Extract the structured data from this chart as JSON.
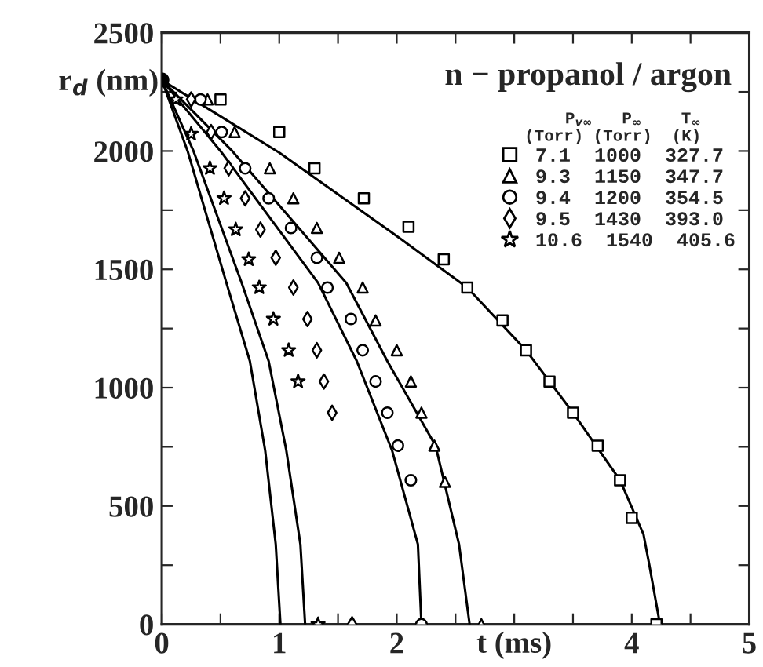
{
  "chart_data": {
    "type": "scatter",
    "title": "n − propanol / argon",
    "xlabel": "t (ms)",
    "ylabel": "r$_{d}$ (nm)",
    "legend_title": "P$_{v∞}$   P$_{∞}$    T$_{∞}$\n(Torr) (Torr)  (K)",
    "xlim": [
      0,
      5
    ],
    "xticks": [
      0,
      {
        "value": 0.5,
        "label": null
      },
      1,
      {
        "value": 1.5,
        "label": null
      },
      2,
      {
        "value": 2.5,
        "label": null
      },
      {
        "value": 3,
        "label": null
      },
      {
        "value": 3.5,
        "label": null
      },
      4,
      {
        "value": 4.5,
        "label": null
      },
      5
    ],
    "ylim": [
      0,
      2500
    ],
    "yticks": [
      0,
      {
        "value": 250,
        "label": null
      },
      500,
      {
        "value": 750,
        "label": null
      },
      1000,
      {
        "value": 1250,
        "label": null
      },
      1500,
      {
        "value": 1750,
        "label": null
      },
      2000,
      {
        "value": 2250,
        "label": null
      },
      2500
    ],
    "grid": false,
    "legend": "top right",
    "series": [
      {
        "name": "7.1  1000  327.7",
        "marker": "square",
        "color": "#000000",
        "x": [
          0.5,
          1.0,
          1.3,
          1.72,
          2.1,
          2.4,
          2.6,
          2.9,
          3.1,
          3.3,
          3.5,
          3.71,
          3.9,
          4.0,
          4.21
        ],
        "values": [
          2218,
          2080,
          1927,
          1800,
          1680,
          1542,
          1423,
          1284,
          1158,
          1026,
          894,
          755,
          609,
          450,
          0
        ]
      },
      {
        "name": "9.3  1150  347.7",
        "marker": "triangle",
        "color": "#000000",
        "x": [
          0.39,
          0.62,
          0.92,
          1.12,
          1.32,
          1.51,
          1.71,
          1.82,
          2.0,
          2.12,
          2.21,
          2.32,
          2.41,
          2.72
        ],
        "values": [
          2218,
          2080,
          1927,
          1800,
          1675,
          1549,
          1423,
          1284,
          1158,
          1026,
          894,
          755,
          602,
          0
        ]
      },
      {
        "name": "9.4  1200  354.5",
        "marker": "circle",
        "color": "#000000",
        "x": [
          0.33,
          0.51,
          0.71,
          0.91,
          1.1,
          1.32,
          1.41,
          1.61,
          1.71,
          1.82,
          1.92,
          2.01,
          2.12,
          2.21
        ],
        "values": [
          2218,
          2080,
          1927,
          1800,
          1675,
          1549,
          1423,
          1290,
          1158,
          1026,
          894,
          755,
          609,
          0
        ]
      },
      {
        "name": "9.5  1430  393.0",
        "marker": "diamond",
        "color": "#000000",
        "x": [
          0.25,
          0.42,
          0.57,
          0.71,
          0.84,
          0.97,
          1.12,
          1.24,
          1.32,
          1.38,
          1.45,
          1.62
        ],
        "values": [
          2218,
          2080,
          1927,
          1800,
          1668,
          1549,
          1423,
          1290,
          1158,
          1026,
          894,
          0
        ]
      },
      {
        "name": "10.6  1540  405.6",
        "marker": "star",
        "color": "#000000",
        "x": [
          0.12,
          0.25,
          0.41,
          0.53,
          0.63,
          0.74,
          0.83,
          0.95,
          1.08,
          1.16,
          1.33
        ],
        "values": [
          2218,
          2072,
          1927,
          1800,
          1668,
          1542,
          1423,
          1290,
          1158,
          1026,
          0
        ]
      },
      {
        "type": "line",
        "marker": "circle",
        "color": "#000000",
        "x": [
          0
        ],
        "values": [
          2300
        ]
      },
      {
        "type": "line",
        "color": "#000000",
        "x": [
          0,
          0.22,
          0.55,
          0.75,
          0.88,
          0.97,
          1.01
        ],
        "values": [
          2300,
          2000,
          1443,
          1112,
          735,
          338,
          0
        ]
      },
      {
        "type": "line",
        "color": "#000000",
        "x": [
          0,
          0.27,
          0.68,
          0.91,
          1.06,
          1.18,
          1.22
        ],
        "values": [
          2300,
          2000,
          1443,
          1112,
          735,
          338,
          0
        ]
      },
      {
        "type": "line",
        "color": "#000000",
        "x": [
          0,
          0.5,
          1.33,
          1.66,
          1.96,
          2.18,
          2.21
        ],
        "values": [
          2300,
          2000,
          1443,
          1112,
          735,
          338,
          0
        ]
      },
      {
        "type": "line",
        "color": "#000000",
        "x": [
          0,
          0.6,
          1.57,
          1.92,
          2.33,
          2.53,
          2.62
        ],
        "values": [
          2300,
          2000,
          1443,
          1112,
          755,
          338,
          0
        ]
      },
      {
        "type": "line",
        "color": "#000000",
        "x": [
          0,
          1.0,
          1.96,
          2.6,
          3.1,
          3.5,
          3.9,
          4.1,
          4.15,
          4.24
        ],
        "values": [
          2300,
          1993,
          1655,
          1423,
          1158,
          894,
          609,
          380,
          250,
          0
        ]
      }
    ]
  }
}
